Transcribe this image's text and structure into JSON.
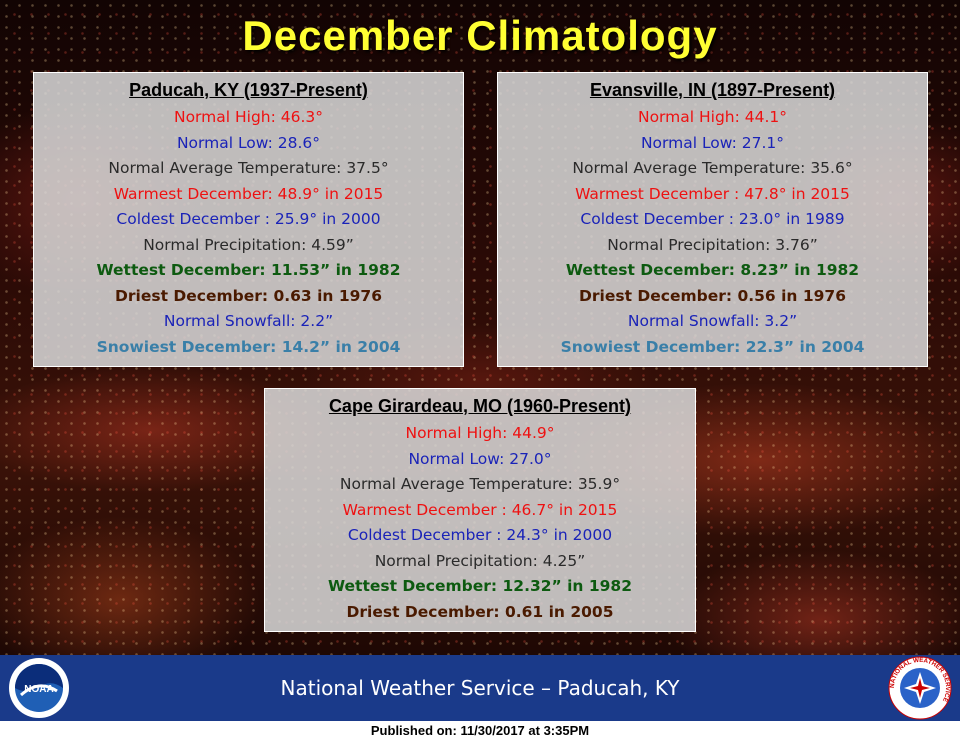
{
  "title": "December Climatology",
  "stations": {
    "paducah": {
      "header": "Paducah, KY (1937-Present)",
      "normal_high": "Normal High: 46.3°",
      "normal_low": "Normal Low: 28.6°",
      "normal_avg": "Normal Average Temperature: 37.5°",
      "warmest": "Warmest December: 48.9° in 2015",
      "coldest": "Coldest December  : 25.9° in 2000",
      "normal_precip": "Normal Precipitation: 4.59”",
      "wettest": "Wettest December: 11.53” in 1982",
      "driest": "Driest December:  0.63 in 1976",
      "normal_snow": "Normal Snowfall: 2.2”",
      "snowiest": "Snowiest December: 14.2” in 2004"
    },
    "evansville": {
      "header": "Evansville, IN (1897-Present)",
      "normal_high": "Normal High: 44.1°",
      "normal_low": "Normal Low: 27.1°",
      "normal_avg": "Normal Average Temperature: 35.6°",
      "warmest": "Warmest December  : 47.8° in 2015",
      "coldest": "Coldest December  : 23.0° in 1989",
      "normal_precip": "Normal Precipitation: 3.76”",
      "wettest": "Wettest December: 8.23” in 1982",
      "driest": "Driest December:  0.56 in 1976",
      "normal_snow": "Normal Snowfall: 3.2”",
      "snowiest": "Snowiest December: 22.3” in 2004"
    },
    "cape_girardeau": {
      "header": "Cape Girardeau, MO (1960-Present)",
      "normal_high": "Normal High: 44.9°",
      "normal_low": "Normal Low: 27.0°",
      "normal_avg": "Normal Average Temperature: 35.9°",
      "warmest": "Warmest December : 46.7° in 2015",
      "coldest": "Coldest December  : 24.3° in 2000",
      "normal_precip": "Normal Precipitation: 4.25”",
      "wettest": "Wettest December: 12.32” in 1982",
      "driest": "Driest December:  0.61 in 2005"
    }
  },
  "footer": {
    "text": "National Weather Service – Paducah, KY",
    "published": "Published on: 11/30/2017 at 3:35PM"
  },
  "logos": {
    "left": "noaa-logo-icon",
    "left_text": "NOAA",
    "right": "nws-logo-icon",
    "right_text": "NATIONAL WEATHER SERVICE"
  },
  "colors": {
    "title": "#ffff33",
    "high": "#ee1111",
    "low": "#1a23b8",
    "wettest": "#0d5a10",
    "driest": "#4a1a00",
    "snowiest": "#3a7fa8",
    "footer_band": "#1a3a8a"
  }
}
